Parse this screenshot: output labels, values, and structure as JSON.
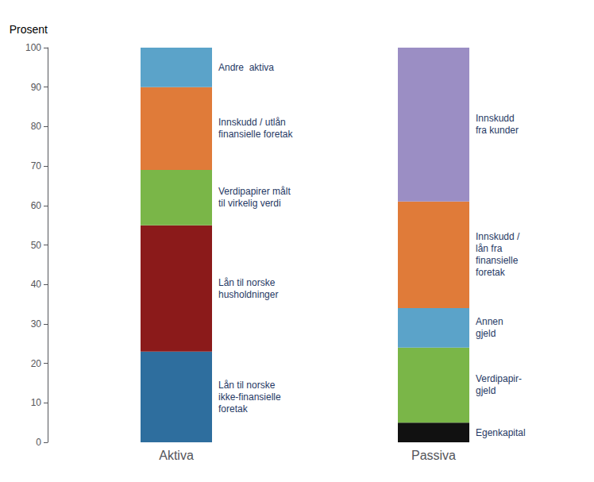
{
  "chart_data": {
    "type": "bar",
    "stacked": true,
    "ylabel": "Prosent",
    "categories": [
      "Aktiva",
      "Passiva"
    ],
    "series": [
      {
        "name": "Lån til norske\nikke-finansielle\nforetak",
        "color": "#2e6e9e",
        "values": [
          23,
          null
        ]
      },
      {
        "name": "Lån til norske\nhusholdninger",
        "color": "#8b1a1a",
        "values": [
          32,
          null
        ]
      },
      {
        "name": "Verdipapirer målt\ntil virkelig verdi",
        "color": "#7ab648",
        "values": [
          14,
          null
        ]
      },
      {
        "name": "Innskudd / utlån\nfinansielle foretak",
        "color": "#e07b39",
        "values": [
          21,
          null
        ]
      },
      {
        "name": "Andre  aktiva",
        "color": "#5ba3c9",
        "values": [
          10,
          null
        ]
      },
      {
        "name": "Egenkapital",
        "color": "#111111",
        "values": [
          null,
          5
        ]
      },
      {
        "name": "Verdipapir-\ngjeld",
        "color": "#7ab648",
        "values": [
          null,
          19
        ]
      },
      {
        "name": "Annen\ngjeld",
        "color": "#5ba3c9",
        "values": [
          null,
          10
        ]
      },
      {
        "name": "Innskudd /\nlån fra\nfinansielle\nforetak",
        "color": "#e07b39",
        "values": [
          null,
          27
        ]
      },
      {
        "name": "Innskudd\nfra kunder",
        "color": "#9b8ec4",
        "values": [
          null,
          39
        ]
      }
    ],
    "ylim": [
      0,
      100
    ],
    "yticks": [
      0,
      10,
      20,
      30,
      40,
      50,
      60,
      70,
      80,
      90,
      100
    ],
    "grid": false
  }
}
